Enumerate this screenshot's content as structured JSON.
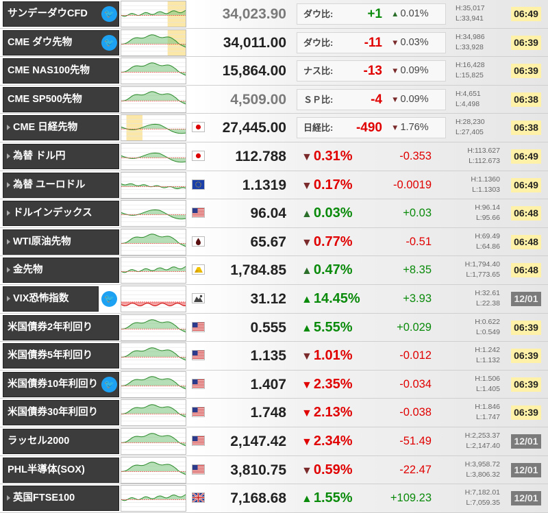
{
  "colors": {
    "up": "#0a8a0a",
    "down": "#e00000",
    "name_bg": "#3c3c3c",
    "live_time_bg": "#fff2a8",
    "closed_time_bg": "#7b7b7b",
    "twitter": "#1da1f2"
  },
  "rows": [
    {
      "name": "サンデーダウCFD",
      "twitter": true,
      "arrow": false,
      "narrow": false,
      "flag": null,
      "price": "34,023.90",
      "priceGray": true,
      "diffLabel": "ダウ比:",
      "diffVal": "+1",
      "dir": "up",
      "pct": "0.01%",
      "change": null,
      "high": "H:35,017",
      "low": "L:33,941",
      "time": "06:49",
      "timeState": "live",
      "spark": {
        "shade": [
          0.72,
          1.0
        ],
        "trend": "flatup"
      }
    },
    {
      "name": "CME ダウ先物",
      "twitter": true,
      "arrow": false,
      "narrow": false,
      "flag": null,
      "price": "34,011.00",
      "priceGray": false,
      "diffLabel": "ダウ比:",
      "diffVal": "-11",
      "dir": "down",
      "pct": "0.03%",
      "change": null,
      "high": "H:34,986",
      "low": "L:33,928",
      "time": "06:39",
      "timeState": "live",
      "spark": {
        "shade": [
          0.72,
          1.0
        ],
        "trend": "hump"
      }
    },
    {
      "name": "CME NAS100先物",
      "twitter": false,
      "arrow": false,
      "narrow": false,
      "flag": null,
      "price": "15,864.00",
      "priceGray": false,
      "diffLabel": "ナス比:",
      "diffVal": "-13",
      "dir": "down",
      "pct": "0.09%",
      "change": null,
      "high": "H:16,428",
      "low": "L:15,825",
      "time": "06:39",
      "timeState": "live",
      "spark": {
        "shade": null,
        "trend": "hump"
      }
    },
    {
      "name": "CME SP500先物",
      "twitter": false,
      "arrow": false,
      "narrow": false,
      "flag": null,
      "price": "4,509.00",
      "priceGray": true,
      "diffLabel": "ＳＰ比:",
      "diffVal": "-4",
      "dir": "down",
      "pct": "0.09%",
      "change": null,
      "high": "H:4,651",
      "low": "L:4,498",
      "time": "06:38",
      "timeState": "live",
      "spark": {
        "shade": null,
        "trend": "hump"
      }
    },
    {
      "name": "CME 日経先物",
      "twitter": false,
      "arrow": true,
      "narrow": false,
      "flag": "jp",
      "price": "27,445.00",
      "priceGray": false,
      "diffLabel": "日経比:",
      "diffVal": "-490",
      "dir": "down",
      "pct": "1.76%",
      "change": null,
      "high": "H:28,230",
      "low": "L:27,405",
      "time": "06:38",
      "timeState": "live",
      "spark": {
        "shade": [
          0.08,
          0.33
        ],
        "trend": "mixed"
      }
    },
    {
      "name": "為替 ドル円",
      "twitter": false,
      "arrow": true,
      "narrow": false,
      "flag": "jp",
      "price": "112.788",
      "priceGray": false,
      "diffLabel": null,
      "diffVal": null,
      "dir": "down",
      "pct": "0.31%",
      "change": "-0.353",
      "high": "H:113.627",
      "low": "L:112.673",
      "time": "06:49",
      "timeState": "live",
      "spark": {
        "shade": null,
        "trend": "mixed"
      }
    },
    {
      "name": "為替 ユーロドル",
      "twitter": false,
      "arrow": true,
      "narrow": false,
      "flag": "eu",
      "price": "1.1319",
      "priceGray": false,
      "diffLabel": null,
      "diffVal": null,
      "dir": "down",
      "pct": "0.17%",
      "change": "-0.0019",
      "high": "H:1.1360",
      "low": "L:1.1303",
      "time": "06:49",
      "timeState": "live",
      "spark": {
        "shade": null,
        "trend": "flatdown"
      }
    },
    {
      "name": "ドルインデックス",
      "twitter": false,
      "arrow": true,
      "narrow": false,
      "flag": "us",
      "price": "96.04",
      "priceGray": false,
      "diffLabel": null,
      "diffVal": null,
      "dir": "up",
      "pct": "0.03%",
      "change": "+0.03",
      "high": "H:96.14",
      "low": "L:95.66",
      "time": "06:48",
      "timeState": "live",
      "spark": {
        "shade": null,
        "trend": "mixed"
      }
    },
    {
      "name": "WTI原油先物",
      "twitter": false,
      "arrow": true,
      "narrow": false,
      "flag": "oil",
      "price": "65.67",
      "priceGray": false,
      "diffLabel": null,
      "diffVal": null,
      "dir": "down",
      "pct": "0.77%",
      "change": "-0.51",
      "high": "H:69.49",
      "low": "L:64.86",
      "time": "06:48",
      "timeState": "live",
      "spark": {
        "shade": null,
        "trend": "hump"
      }
    },
    {
      "name": "金先物",
      "twitter": false,
      "arrow": true,
      "narrow": false,
      "flag": "gold",
      "price": "1,784.85",
      "priceGray": false,
      "diffLabel": null,
      "diffVal": null,
      "dir": "up",
      "pct": "0.47%",
      "change": "+8.35",
      "high": "H:1,794.40",
      "low": "L:1,773.65",
      "time": "06:48",
      "timeState": "live",
      "spark": {
        "shade": null,
        "trend": "flatup"
      }
    },
    {
      "name": "VIX恐怖指数",
      "twitter": true,
      "arrow": true,
      "narrow": true,
      "flag": "vix",
      "price": "31.12",
      "priceGray": false,
      "diffLabel": null,
      "diffVal": null,
      "dir": "up",
      "pct": "14.45%",
      "change": "+3.93",
      "high": "H:32.61",
      "low": "L:22.38",
      "time": "12/01",
      "timeState": "closed",
      "spark": {
        "shade": null,
        "trend": "redlow"
      }
    },
    {
      "name": "米国債券2年利回り",
      "twitter": false,
      "arrow": false,
      "narrow": false,
      "flag": "us",
      "price": "0.555",
      "priceGray": false,
      "diffLabel": null,
      "diffVal": null,
      "dir": "up",
      "pct": "5.55%",
      "change": "+0.029",
      "high": "H:0.622",
      "low": "L:0.549",
      "time": "06:39",
      "timeState": "live",
      "spark": {
        "shade": null,
        "trend": "hump"
      }
    },
    {
      "name": "米国債券5年利回り",
      "twitter": false,
      "arrow": false,
      "narrow": false,
      "flag": "us",
      "price": "1.135",
      "priceGray": false,
      "diffLabel": null,
      "diffVal": null,
      "dir": "down",
      "pct": "1.01%",
      "change": "-0.012",
      "high": "H:1.242",
      "low": "L:1.132",
      "time": "06:39",
      "timeState": "live",
      "spark": {
        "shade": null,
        "trend": "hump"
      }
    },
    {
      "name": "米国債券10年利回り",
      "twitter": true,
      "arrow": false,
      "narrow": false,
      "flag": "us",
      "price": "1.407",
      "priceGray": false,
      "diffLabel": null,
      "diffVal": null,
      "dir": "down",
      "pct": "2.35%",
      "change": "-0.034",
      "high": "H:1.506",
      "low": "L:1.405",
      "time": "06:39",
      "timeState": "live",
      "spark": {
        "shade": null,
        "trend": "hump"
      }
    },
    {
      "name": "米国債券30年利回り",
      "twitter": false,
      "arrow": false,
      "narrow": false,
      "flag": "us",
      "price": "1.748",
      "priceGray": false,
      "diffLabel": null,
      "diffVal": null,
      "dir": "down",
      "pct": "2.13%",
      "change": "-0.038",
      "high": "H:1.846",
      "low": "L:1.747",
      "time": "06:39",
      "timeState": "live",
      "spark": {
        "shade": null,
        "trend": "hump"
      }
    },
    {
      "name": "ラッセル2000",
      "twitter": false,
      "arrow": false,
      "narrow": false,
      "flag": "us",
      "price": "2,147.42",
      "priceGray": false,
      "diffLabel": null,
      "diffVal": null,
      "dir": "down",
      "pct": "2.34%",
      "change": "-51.49",
      "high": "H:2,253.37",
      "low": "L:2,147.40",
      "time": "12/01",
      "timeState": "closed",
      "spark": {
        "shade": null,
        "trend": "hump"
      }
    },
    {
      "name": "PHL半導体(SOX)",
      "twitter": false,
      "arrow": false,
      "narrow": false,
      "flag": "us",
      "price": "3,810.75",
      "priceGray": false,
      "diffLabel": null,
      "diffVal": null,
      "dir": "down",
      "pct": "0.59%",
      "change": "-22.47",
      "high": "H:3,958.72",
      "low": "L:3,806.32",
      "time": "12/01",
      "timeState": "closed",
      "spark": {
        "shade": null,
        "trend": "hump"
      }
    },
    {
      "name": "英国FTSE100",
      "twitter": false,
      "arrow": true,
      "narrow": false,
      "flag": "uk",
      "price": "7,168.68",
      "priceGray": false,
      "diffLabel": null,
      "diffVal": null,
      "dir": "up",
      "pct": "1.55%",
      "change": "+109.23",
      "high": "H:7,182.01",
      "low": "L:7,059.35",
      "time": "12/01",
      "timeState": "closed",
      "spark": {
        "shade": null,
        "trend": "flatup"
      }
    }
  ]
}
